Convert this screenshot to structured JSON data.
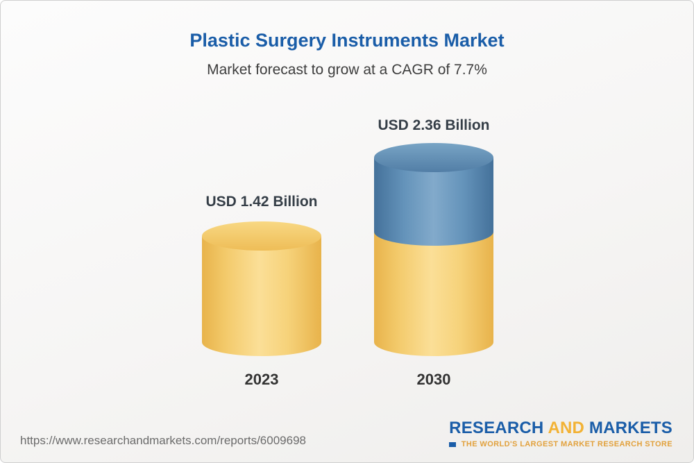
{
  "header": {
    "title": "Plastic Surgery Instruments Market",
    "subtitle": "Market forecast to grow at a CAGR of 7.7%"
  },
  "footer": {
    "source_url": "https://www.researchandmarkets.com/reports/6009698",
    "logo": {
      "word_research": "RESEARCH",
      "word_and": "AND",
      "word_markets": "MARKETS",
      "tagline": "THE WORLD'S LARGEST MARKET RESEARCH STORE"
    }
  },
  "chart_data": {
    "type": "bar",
    "bar_style": "3d-cylinder-stacked",
    "title": "Plastic Surgery Instruments Market",
    "subtitle": "Market forecast to grow at a CAGR of 7.7%",
    "unit": "USD Billion",
    "cagr_percent": 7.7,
    "categories": [
      "2023",
      "2030"
    ],
    "values": [
      1.42,
      2.36
    ],
    "value_labels": [
      "USD 1.42 Billion",
      "USD 2.36 Billion"
    ],
    "colors": {
      "base_segment_yellow": "#f3ca6b",
      "growth_segment_blue": "#6493ba",
      "title_blue": "#1a5da8"
    },
    "legend": "none",
    "grid": false,
    "note": "2030 cylinder is stacked: yellow base equals the 2023 value, blue top segment shows growth to 2.36"
  }
}
